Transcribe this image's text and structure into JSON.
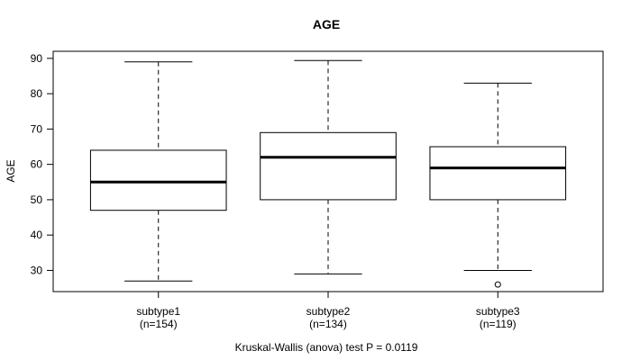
{
  "figure": {
    "background": "#ffffff",
    "line_color": "#000000",
    "median_color": "#000000",
    "box_fill": "#ffffff"
  },
  "chart_data": {
    "type": "boxplot",
    "title": "AGE",
    "ylabel": "AGE",
    "xlabel": "",
    "caption": "Kruskal-Wallis (anova) test P = 0.0119",
    "ylim": [
      24,
      92
    ],
    "y_ticks": [
      30,
      40,
      50,
      60,
      70,
      80,
      90
    ],
    "grid": false,
    "legend": "none",
    "whisker_style": "dashed",
    "groups": [
      {
        "label": "subtype1",
        "count_label": "(n=154)",
        "n": 154,
        "whisker_low": 27,
        "q1": 47,
        "median": 55,
        "q3": 64,
        "whisker_high": 89,
        "outliers": []
      },
      {
        "label": "subtype2",
        "count_label": "(n=134)",
        "n": 134,
        "whisker_low": 29,
        "q1": 50,
        "median": 62,
        "q3": 69,
        "whisker_high": 89.4,
        "outliers": []
      },
      {
        "label": "subtype3",
        "count_label": "(n=119)",
        "n": 119,
        "whisker_low": 30,
        "q1": 50,
        "median": 59,
        "q3": 65,
        "whisker_high": 83,
        "outliers": [
          26
        ]
      }
    ]
  }
}
